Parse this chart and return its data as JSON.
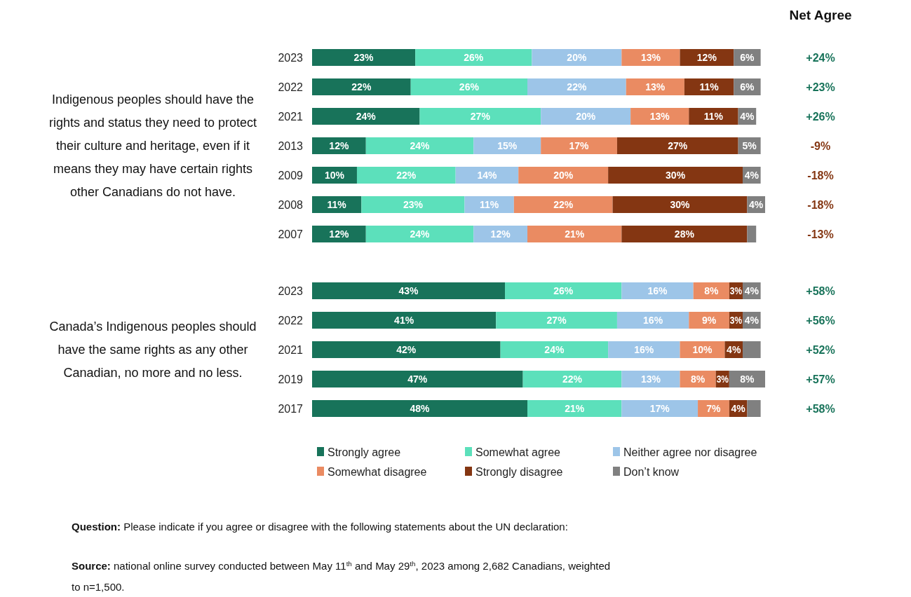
{
  "chart_data": [
    {
      "type": "bar",
      "orientation": "horizontal",
      "stacked": true,
      "tick_labels": "y",
      "title": "Indigenous peoples should have the rights and status they need to protect their culture and heritage, even if it means they may have certain rights other Canadians do not have.",
      "categories": [
        "2023",
        "2022",
        "2021",
        "2013",
        "2009",
        "2008",
        "2007"
      ],
      "series": [
        {
          "color": "#18735a",
          "values": [
            23,
            22,
            24,
            12,
            10,
            11,
            12
          ],
          "value_labels": [
            "23%",
            "22%",
            "24%",
            "12%",
            "10%",
            "11%",
            "12%"
          ]
        },
        {
          "color": "#5ce0bb",
          "values": [
            26,
            26,
            27,
            24,
            22,
            23,
            24
          ],
          "value_labels": [
            "26%",
            "26%",
            "27%",
            "24%",
            "22%",
            "23%",
            "24%"
          ]
        },
        {
          "color": "#9dc5e8",
          "values": [
            20,
            22,
            20,
            15,
            14,
            11,
            12
          ],
          "value_labels": [
            "20%",
            "22%",
            "20%",
            "15%",
            "14%",
            "11%",
            "12%"
          ]
        },
        {
          "color": "#ea8b62",
          "values": [
            13,
            13,
            13,
            17,
            20,
            22,
            21
          ],
          "value_labels": [
            "13%",
            "13%",
            "13%",
            "17%",
            "20%",
            "22%",
            "21%"
          ]
        },
        {
          "color": "#843612",
          "values": [
            12,
            11,
            11,
            27,
            30,
            30,
            28
          ],
          "value_labels": [
            "12%",
            "11%",
            "11%",
            "27%",
            "30%",
            "30%",
            "28%"
          ]
        },
        {
          "color": "#808080",
          "values": [
            6,
            6,
            4,
            5,
            4,
            4,
            2
          ],
          "value_labels": [
            "6%",
            "6%",
            "4%",
            "5%",
            "4%",
            "4%",
            null
          ]
        }
      ],
      "annotations": [
        "Net Agree",
        "+24%",
        "+23%",
        "+26%",
        "-9%",
        "-18%",
        "-18%",
        "-13%"
      ]
    },
    {
      "type": "bar",
      "orientation": "horizontal",
      "stacked": true,
      "tick_labels": "y",
      "legend": "bottom",
      "title": "Canada’s Indigenous peoples should have the same rights as any other Canadian, no more and no less.",
      "categories": [
        "2023",
        "2022",
        "2021",
        "2019",
        "2017"
      ],
      "series": [
        {
          "name": "Strongly agree",
          "color": "#18735a",
          "values": [
            43,
            41,
            42,
            47,
            48
          ],
          "value_labels": [
            "43%",
            "41%",
            "42%",
            "47%",
            "48%"
          ]
        },
        {
          "name": "Somewhat agree",
          "color": "#5ce0bb",
          "values": [
            26,
            27,
            24,
            22,
            21
          ],
          "value_labels": [
            "26%",
            "27%",
            "24%",
            "22%",
            "21%"
          ]
        },
        {
          "name": "Neither agree nor disagree",
          "color": "#9dc5e8",
          "values": [
            16,
            16,
            16,
            13,
            17
          ],
          "value_labels": [
            "16%",
            "16%",
            "16%",
            "13%",
            "17%"
          ]
        },
        {
          "name": "Somewhat disagree",
          "color": "#ea8b62",
          "values": [
            8,
            9,
            10,
            8,
            7
          ],
          "value_labels": [
            "8%",
            "9%",
            "10%",
            "8%",
            "7%"
          ]
        },
        {
          "name": "Strongly disagree",
          "color": "#843612",
          "values": [
            3,
            3,
            4,
            3,
            4
          ],
          "value_labels": [
            "3%",
            "3%",
            "4%",
            "3%",
            "4%"
          ]
        },
        {
          "name": "Don’t know",
          "color": "#808080",
          "values": [
            4,
            4,
            4,
            8,
            3
          ],
          "value_labels": [
            "4%",
            "4%",
            null,
            "8%",
            null
          ]
        }
      ],
      "annotations": [
        "+58%",
        "+56%",
        "+52%",
        "+57%",
        "+58%",
        "Question: Please indicate if you agree or disagree with the following statements about the UN declaration:",
        "Source: national online survey conducted between May 11$^{th}$ and May 29$^{th}$, 2023 among 2,682 Canadians, weighted to n=1,500."
      ]
    }
  ]
}
